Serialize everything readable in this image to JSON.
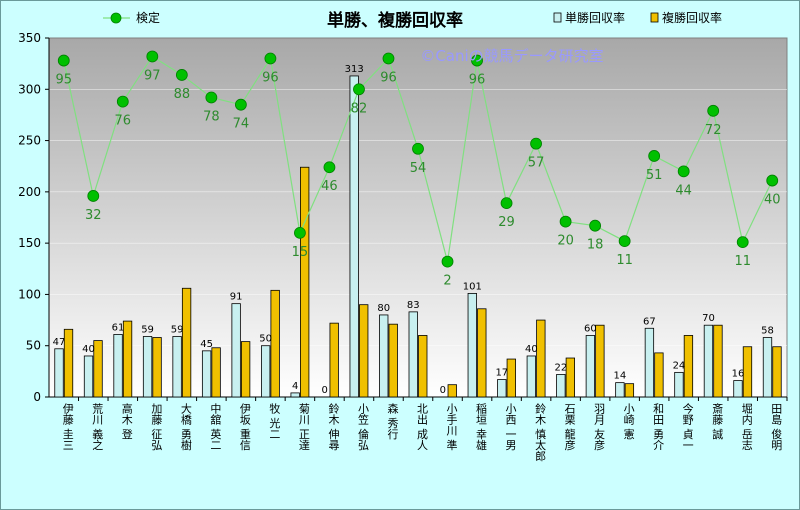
{
  "chart_data": {
    "type": "bar",
    "title": "単勝、複勝回収率",
    "watermark": "©Caniの競馬データ研究室",
    "ylim": [
      0,
      350
    ],
    "yticks": [
      0,
      50,
      100,
      150,
      200,
      250,
      300,
      350
    ],
    "categories": [
      "伊藤 圭三",
      "荒川 義之",
      "高木 登",
      "加藤 征弘",
      "大橋 勇樹",
      "中舘 英二",
      "伊坂 重信",
      "牧 光二",
      "菊川 正達",
      "鈴木 伸尋",
      "小笠 倫弘",
      "森 秀行",
      "北出 成人",
      "小手川 準",
      "稲垣 幸雄",
      "小西 一男",
      "鈴木 慎太郎",
      "石栗 龍彦",
      "羽月 友彦",
      "小崎 憲",
      "和田 勇介",
      "今野 貞一",
      "斎藤 誠",
      "堀内 岳志",
      "田島 俊明"
    ],
    "series": [
      {
        "name": "単勝回収率",
        "color": "#c8f0f0",
        "values": [
          47,
          40,
          61,
          59,
          59,
          45,
          91,
          50,
          4,
          0,
          313,
          80,
          83,
          0,
          101,
          17,
          40,
          22,
          60,
          14,
          67,
          24,
          70,
          16,
          58
        ]
      },
      {
        "name": "複勝回収率",
        "color": "#f0c000",
        "values": [
          66,
          55,
          74,
          58,
          106,
          48,
          54,
          104,
          224,
          72,
          90,
          71,
          60,
          12,
          86,
          37,
          75,
          38,
          70,
          13,
          43,
          60,
          70,
          49,
          49
        ]
      },
      {
        "name": "検定",
        "type": "line",
        "color": "#00c000",
        "line_color": "#80e080",
        "values": [
          328,
          196,
          288,
          332,
          314,
          292,
          285,
          330,
          160,
          224,
          300,
          330,
          242,
          132,
          328,
          189,
          247,
          171,
          167,
          152,
          235,
          220,
          279,
          151,
          211
        ],
        "labels": [
          95,
          32,
          76,
          97,
          88,
          78,
          74,
          96,
          15,
          46,
          82,
          96,
          54,
          2,
          96,
          29,
          57,
          20,
          18,
          11,
          51,
          44,
          72,
          11,
          40
        ]
      }
    ]
  }
}
